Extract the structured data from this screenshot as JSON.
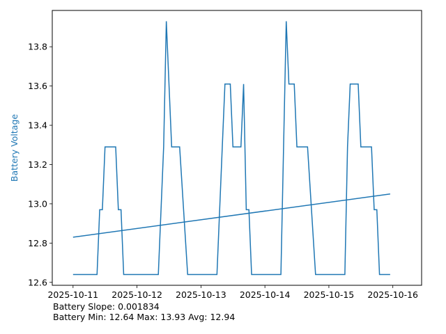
{
  "chart_data": {
    "type": "line",
    "title": "",
    "xlabel": "",
    "ylabel": "Battery Voltage",
    "x_ticks": [
      "2025-10-11",
      "2025-10-12",
      "2025-10-13",
      "2025-10-14",
      "2025-10-15",
      "2025-10-16"
    ],
    "y_ticks": [
      "12.6",
      "12.8",
      "13.0",
      "13.2",
      "13.4",
      "13.6",
      "13.8"
    ],
    "xlim": [
      "2025-10-10 16:12",
      "2025-10-16 10:48"
    ],
    "ylim": [
      12.585,
      13.985
    ],
    "colors": {
      "series": "#1f77b4",
      "ylabel": "#1f77b4"
    },
    "series": [
      {
        "points": [
          [
            "2025-10-11 00:00",
            12.64
          ],
          [
            "2025-10-11 09:00",
            12.64
          ],
          [
            "2025-10-11 10:00",
            12.97
          ],
          [
            "2025-10-11 11:00",
            12.97
          ],
          [
            "2025-10-11 12:00",
            13.29
          ],
          [
            "2025-10-11 16:00",
            13.29
          ],
          [
            "2025-10-11 17:00",
            12.97
          ],
          [
            "2025-10-11 18:00",
            12.97
          ],
          [
            "2025-10-11 19:00",
            12.64
          ],
          [
            "2025-10-12 08:00",
            12.64
          ],
          [
            "2025-10-12 10:00",
            13.29
          ],
          [
            "2025-10-12 11:00",
            13.93
          ],
          [
            "2025-10-12 13:00",
            13.29
          ],
          [
            "2025-10-12 16:00",
            13.29
          ],
          [
            "2025-10-12 19:00",
            12.64
          ],
          [
            "2025-10-13 06:00",
            12.64
          ],
          [
            "2025-10-13 08:00",
            13.29
          ],
          [
            "2025-10-13 09:00",
            13.61
          ],
          [
            "2025-10-13 11:00",
            13.61
          ],
          [
            "2025-10-13 12:00",
            13.29
          ],
          [
            "2025-10-13 15:00",
            13.29
          ],
          [
            "2025-10-13 16:00",
            13.61
          ],
          [
            "2025-10-13 17:00",
            12.97
          ],
          [
            "2025-10-13 18:00",
            12.97
          ],
          [
            "2025-10-13 19:00",
            12.64
          ],
          [
            "2025-10-14 06:00",
            12.64
          ],
          [
            "2025-10-14 07:00",
            13.29
          ],
          [
            "2025-10-14 08:00",
            13.93
          ],
          [
            "2025-10-14 09:00",
            13.61
          ],
          [
            "2025-10-14 11:00",
            13.61
          ],
          [
            "2025-10-14 12:00",
            13.29
          ],
          [
            "2025-10-14 16:00",
            13.29
          ],
          [
            "2025-10-14 19:00",
            12.64
          ],
          [
            "2025-10-15 06:00",
            12.64
          ],
          [
            "2025-10-15 07:00",
            13.29
          ],
          [
            "2025-10-15 08:00",
            13.61
          ],
          [
            "2025-10-15 11:00",
            13.61
          ],
          [
            "2025-10-15 12:00",
            13.29
          ],
          [
            "2025-10-15 16:00",
            13.29
          ],
          [
            "2025-10-15 17:00",
            12.97
          ],
          [
            "2025-10-15 18:00",
            12.97
          ],
          [
            "2025-10-15 19:00",
            12.64
          ],
          [
            "2025-10-15 23:00",
            12.64
          ]
        ]
      },
      {
        "points": [
          [
            "2025-10-11 00:00",
            12.83
          ],
          [
            "2025-10-15 23:00",
            13.05
          ]
        ]
      }
    ],
    "grid": false,
    "legend": "none"
  },
  "stats": {
    "slope_line": "Battery Slope: 0.001834",
    "minmax_line": "Battery Min: 12.64 Max: 13.93 Avg: 12.94"
  }
}
